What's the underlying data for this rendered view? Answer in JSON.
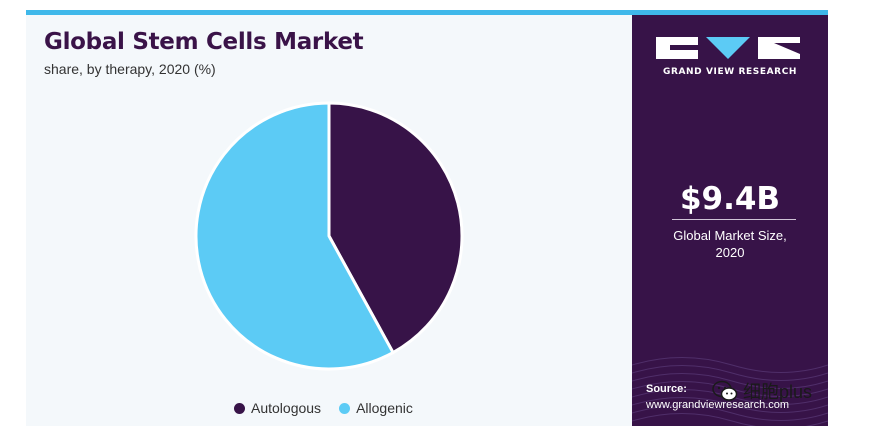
{
  "title": "Global Stem Cells Market",
  "subtitle": "share, by therapy, 2020 (%)",
  "brand": {
    "name": "GRAND VIEW RESEARCH"
  },
  "market": {
    "value": "$9.4B",
    "label_line1": "Global Market Size,",
    "label_line2": "2020"
  },
  "source": {
    "label": "Source:",
    "url": "www.grandviewresearch.com"
  },
  "watermark": {
    "text": "细胞plus"
  },
  "colors": {
    "autologous": "#371348",
    "allogenic": "#5ccbf5",
    "accent": "#3fb8ea",
    "panel": "#371348"
  },
  "chart_data": {
    "type": "pie",
    "title": "Global Stem Cells Market",
    "subtitle": "share, by therapy, 2020 (%)",
    "categories": [
      "Autologous",
      "Allogenic"
    ],
    "values": [
      42,
      58
    ],
    "colors": [
      "#371348",
      "#5ccbf5"
    ],
    "legend_position": "bottom"
  }
}
